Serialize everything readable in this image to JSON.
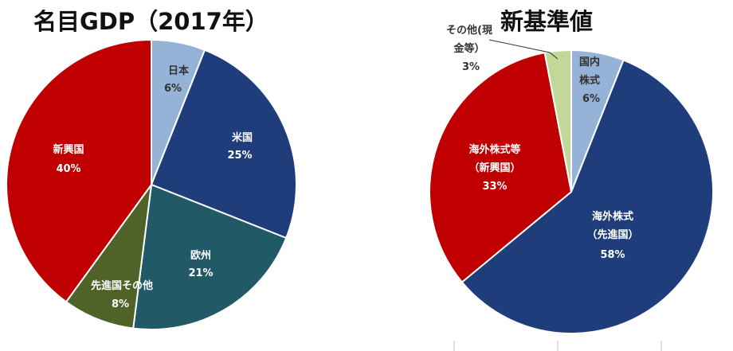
{
  "chart_data": [
    {
      "type": "pie",
      "title": "名目GDP（2017年）",
      "slices": [
        {
          "label": "日本",
          "value": 6,
          "value_label": "6%",
          "color": "#95b3d7"
        },
        {
          "label": "米国",
          "value": 25,
          "value_label": "25%",
          "color": "#1f3d7a"
        },
        {
          "label": "欧州",
          "value": 21,
          "value_label": "21%",
          "color": "#215967"
        },
        {
          "label": "先進国その他",
          "value": 8,
          "value_label": "8%",
          "color": "#4f6228"
        },
        {
          "label": "新興国",
          "value": 40,
          "value_label": "40%",
          "color": "#c00000"
        }
      ]
    },
    {
      "type": "pie",
      "title": "新基準値",
      "slices": [
        {
          "label": "国内株式",
          "value": 6,
          "value_label": "6%",
          "color": "#95b3d7"
        },
        {
          "label": "海外株式（先進国）",
          "value": 58,
          "value_label": "58%",
          "color": "#1f3d7a"
        },
        {
          "label": "海外株式等（新興国）",
          "value": 33,
          "value_label": "33%",
          "color": "#c00000"
        },
        {
          "label": "その他(現金等）",
          "value": 3,
          "value_label": "3%",
          "color": "#c4d79b"
        }
      ]
    }
  ]
}
